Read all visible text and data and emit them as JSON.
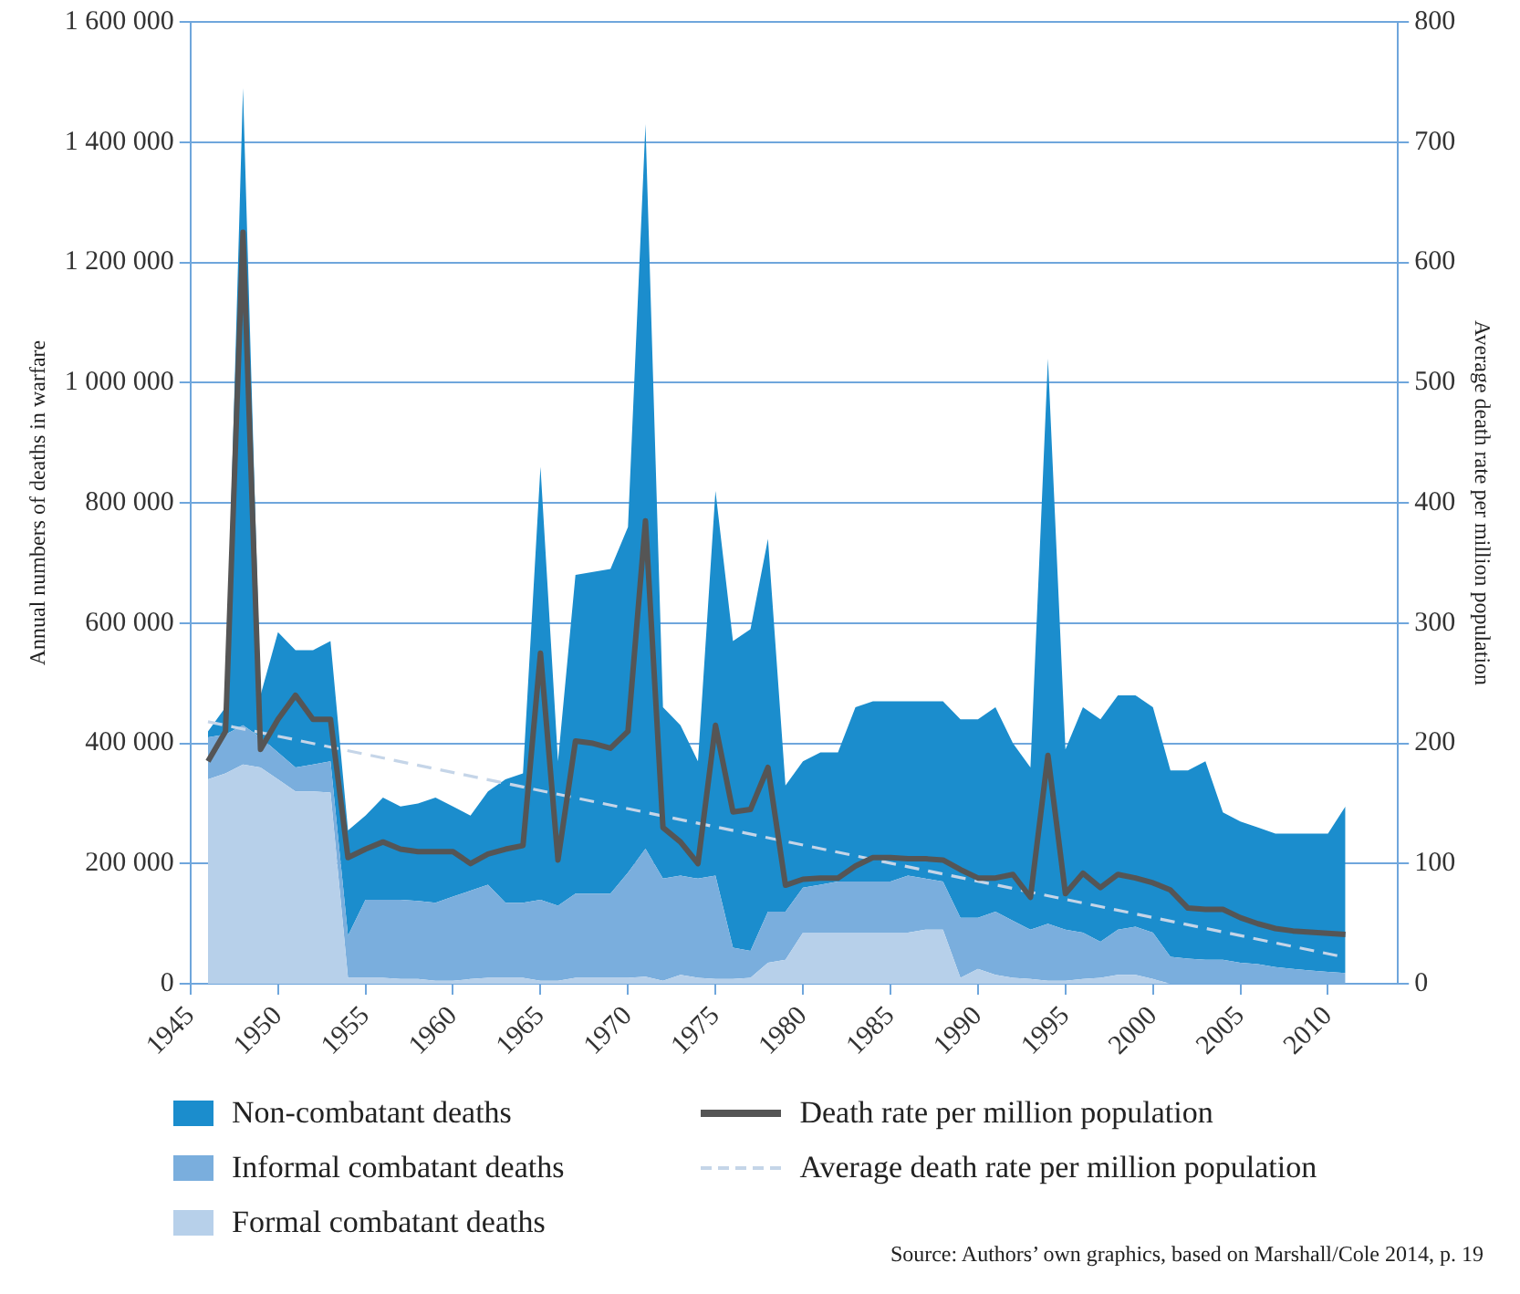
{
  "chart_data": {
    "type": "area",
    "stacked": true,
    "grid": "y",
    "legend": "bottom",
    "line_style": "solid",
    "marker": "none",
    "ylabel": "Annual numbers of deaths in warfare",
    "y2label": "Average death rate per million population",
    "x": [
      1946,
      1947,
      1948,
      1949,
      1950,
      1951,
      1952,
      1953,
      1954,
      1955,
      1956,
      1957,
      1958,
      1959,
      1960,
      1961,
      1962,
      1963,
      1964,
      1965,
      1966,
      1967,
      1968,
      1969,
      1970,
      1971,
      1972,
      1973,
      1974,
      1975,
      1976,
      1977,
      1978,
      1979,
      1980,
      1981,
      1982,
      1983,
      1984,
      1985,
      1986,
      1987,
      1988,
      1989,
      1990,
      1991,
      1992,
      1993,
      1994,
      1995,
      1996,
      1997,
      1998,
      1999,
      2000,
      2001,
      2002,
      2003,
      2004,
      2005,
      2006,
      2007,
      2008,
      2009,
      2010,
      2011
    ],
    "xlim": [
      1945,
      2014
    ],
    "xticks": [
      1945,
      1950,
      1955,
      1960,
      1965,
      1970,
      1975,
      1980,
      1985,
      1990,
      1995,
      2000,
      2005,
      2010
    ],
    "ylim": [
      0,
      1600000
    ],
    "yticks": [
      0,
      {
        "value": 200000,
        "label": "200 000"
      },
      {
        "value": 400000,
        "label": "400 000"
      },
      {
        "value": 600000,
        "label": "600 000"
      },
      {
        "value": 800000,
        "label": "800 000"
      },
      {
        "value": 1000000,
        "label": "1 000 000"
      },
      {
        "value": 1200000,
        "label": "1 200 000"
      },
      {
        "value": 1400000,
        "label": "1 400 000"
      },
      {
        "value": 1600000,
        "label": "1 600 000"
      }
    ],
    "y2lim": [
      0,
      800
    ],
    "y2ticks": [
      0,
      100,
      200,
      300,
      400,
      500,
      600,
      700,
      800
    ],
    "series": [
      {
        "name": "Formal combatant deaths",
        "color": "#b7d0ea",
        "values": [
          340000,
          350000,
          365000,
          360000,
          340000,
          320000,
          320000,
          318000,
          10000,
          10000,
          10000,
          8000,
          8000,
          5000,
          5000,
          8000,
          10000,
          10000,
          10000,
          5000,
          5000,
          10000,
          10000,
          10000,
          10000,
          12000,
          5000,
          15000,
          10000,
          8000,
          8000,
          10000,
          35000,
          40000,
          85000,
          85000,
          85000,
          85000,
          85000,
          85000,
          85000,
          90000,
          90000,
          10000,
          25000,
          15000,
          10000,
          8000,
          5000,
          5000,
          8000,
          10000,
          15000,
          15000,
          8000,
          0,
          0,
          0,
          0,
          0,
          0,
          0,
          0,
          0,
          0,
          0
        ]
      },
      {
        "name": "Informal combatant deaths",
        "color": "#7aaedd",
        "values": [
          70000,
          65000,
          65000,
          50000,
          45000,
          40000,
          45000,
          52000,
          70000,
          130000,
          130000,
          132000,
          130000,
          130000,
          140000,
          147000,
          155000,
          125000,
          125000,
          135000,
          125000,
          140000,
          140000,
          140000,
          175000,
          213000,
          170000,
          165000,
          165000,
          172000,
          52000,
          45000,
          85000,
          80000,
          75000,
          80000,
          85000,
          85000,
          85000,
          85000,
          95000,
          85000,
          80000,
          100000,
          85000,
          105000,
          95000,
          82000,
          95000,
          85000,
          77000,
          60000,
          75000,
          80000,
          77000,
          45000,
          42000,
          40000,
          40000,
          35000,
          33000,
          28000,
          25000,
          22000,
          20000,
          18000
        ]
      },
      {
        "name": "Non-combatant deaths",
        "color": "#1b8dcd",
        "values": [
          10000,
          45000,
          1060000,
          70000,
          200000,
          195000,
          190000,
          200000,
          175000,
          140000,
          170000,
          155000,
          162000,
          175000,
          150000,
          125000,
          155000,
          205000,
          215000,
          720000,
          240000,
          530000,
          535000,
          540000,
          575000,
          1205000,
          285000,
          250000,
          195000,
          640000,
          510000,
          535000,
          620000,
          210000,
          210000,
          220000,
          215000,
          290000,
          300000,
          300000,
          290000,
          295000,
          300000,
          330000,
          330000,
          340000,
          295000,
          270000,
          940000,
          300000,
          375000,
          370000,
          390000,
          385000,
          375000,
          310000,
          313000,
          330000,
          245000,
          235000,
          227000,
          222000,
          225000,
          228000,
          230000,
          277000
        ]
      },
      {
        "name": "Death rate per million population",
        "type": "line",
        "axis": "y2",
        "color": "#555555",
        "values": [
          185,
          210,
          625,
          195,
          220,
          240,
          220,
          220,
          105,
          112,
          118,
          112,
          110,
          110,
          110,
          100,
          108,
          112,
          115,
          275,
          103,
          202,
          200,
          196,
          210,
          385,
          130,
          118,
          100,
          215,
          143,
          145,
          180,
          82,
          87,
          88,
          88,
          98,
          105,
          105,
          104,
          104,
          103,
          95,
          88,
          88,
          91,
          72,
          190,
          75,
          92,
          80,
          91,
          88,
          84,
          78,
          63,
          62,
          62,
          55,
          50,
          46,
          44,
          43,
          42,
          41
        ]
      },
      {
        "name": "Average death rate per million population",
        "type": "line",
        "axis": "y2",
        "line_style": "dashed",
        "color": "#c5d5e8",
        "x": [
          1946,
          2011
        ],
        "values": [
          218,
          22
        ]
      }
    ],
    "annotations": [
      "Source: Authors’ own graphics, based on Marshall/Cole 2014, p. 19"
    ]
  }
}
